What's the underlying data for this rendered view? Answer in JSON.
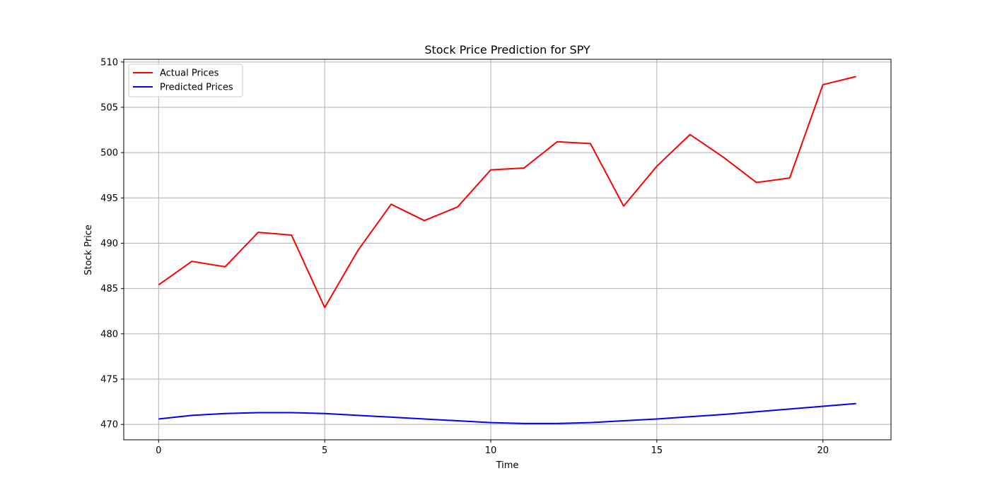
{
  "chart_data": {
    "type": "line",
    "title": "Stock Price Prediction for SPY",
    "xlabel": "Time",
    "ylabel": "Stock Price",
    "x": [
      0,
      1,
      2,
      3,
      4,
      5,
      6,
      7,
      8,
      9,
      10,
      11,
      12,
      13,
      14,
      15,
      16,
      17,
      18,
      19,
      20,
      21
    ],
    "xlim": [
      -1.05,
      22.05
    ],
    "ylim": [
      468.3,
      510.3
    ],
    "xticks": [
      0,
      5,
      10,
      15,
      20
    ],
    "yticks": [
      470,
      475,
      480,
      485,
      490,
      495,
      500,
      505,
      510
    ],
    "grid": true,
    "legend_position": "top-left",
    "series": [
      {
        "name": "Actual Prices",
        "color": "#ff0000",
        "values": [
          485.4,
          488.0,
          487.4,
          491.2,
          490.9,
          482.9,
          489.2,
          494.3,
          492.5,
          494.0,
          498.1,
          498.3,
          501.2,
          501.0,
          494.1,
          498.5,
          502.0,
          499.5,
          496.7,
          497.2,
          507.5,
          508.4
        ]
      },
      {
        "name": "Predicted Prices",
        "color": "#0000ff",
        "values": [
          470.6,
          471.0,
          471.2,
          471.3,
          471.3,
          471.2,
          471.0,
          470.8,
          470.6,
          470.4,
          470.2,
          470.1,
          470.1,
          470.2,
          470.4,
          470.6,
          470.85,
          471.1,
          471.4,
          471.7,
          472.0,
          472.3
        ]
      }
    ]
  }
}
